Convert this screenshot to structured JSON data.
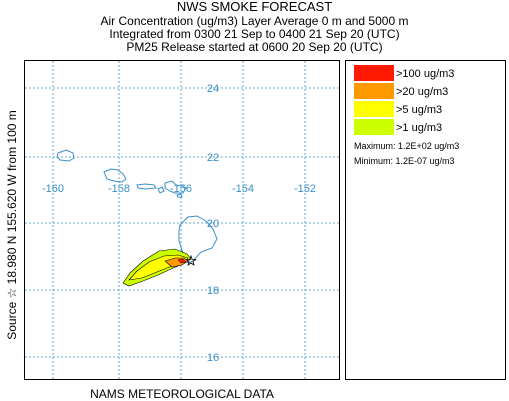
{
  "header": {
    "title": "NWS SMOKE FORECAST",
    "line1": "Air Concentration (ug/m3) Layer Average    0 m and  5000 m",
    "line2": "Integrated from 0300 21 Sep to 0400 21 Sep 20 (UTC)",
    "line3": "PM25 Release started at 0600 20 Sep 20 (UTC)"
  },
  "side_label": "Source ☆  18.980  N 155.620  W         from   100 m",
  "footer": "NAMS METEOROLOGICAL DATA",
  "map": {
    "lon_labels": [
      "-160",
      "-158",
      "-156",
      "-154",
      "-152"
    ],
    "lat_labels": [
      "24",
      "22",
      "20",
      "18",
      "16"
    ],
    "colors": {
      "coast": "#3a8fc9",
      "grid": "#3a8fc9"
    },
    "source_marker": "star-icon"
  },
  "legend": {
    "items": [
      {
        "label": ">100 ug/m3",
        "color": "#ff1a00"
      },
      {
        "label": ">20 ug/m3",
        "color": "#ff9900"
      },
      {
        "label": ">5 ug/m3",
        "color": "#ffff00"
      },
      {
        "label": ">1 ug/m3",
        "color": "#ccff00"
      }
    ],
    "maximum": "Maximum: 1.2E+02 ug/m3",
    "minimum": "Minimum: 1.2E-07 ug/m3"
  }
}
